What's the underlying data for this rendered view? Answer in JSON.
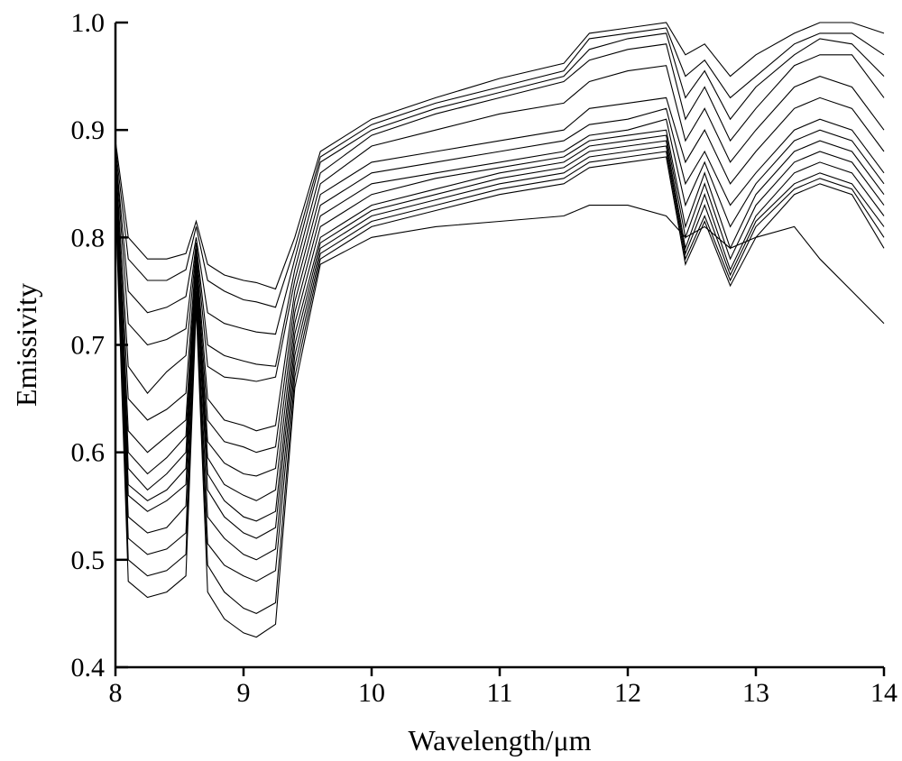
{
  "chart_data": {
    "type": "line",
    "title": "",
    "xlabel": "Wavelength/μm",
    "ylabel": "Emissivity",
    "xlim": [
      8,
      14
    ],
    "ylim": [
      0.4,
      1.0
    ],
    "x_ticks": [
      "8",
      "9",
      "10",
      "11",
      "12",
      "13",
      "14"
    ],
    "y_ticks": [
      "0.4",
      "0.5",
      "0.6",
      "0.7",
      "0.8",
      "0.9",
      "1.0"
    ],
    "grid": false,
    "legend": "none",
    "line_color": "#000000",
    "x": [
      8.0,
      8.1,
      8.25,
      8.4,
      8.55,
      8.63,
      8.72,
      8.85,
      9.0,
      9.1,
      9.25,
      9.4,
      9.6,
      10.0,
      10.5,
      11.0,
      11.5,
      11.7,
      12.0,
      12.3,
      12.45,
      12.6,
      12.8,
      13.0,
      13.3,
      13.5,
      13.75,
      14.0
    ],
    "series": [
      {
        "values": [
          0.89,
          0.8,
          0.78,
          0.78,
          0.785,
          0.815,
          0.775,
          0.765,
          0.76,
          0.758,
          0.752,
          0.8,
          0.88,
          0.91,
          0.93,
          0.948,
          0.962,
          0.99,
          0.995,
          1.0,
          0.97,
          0.98,
          0.95,
          0.97,
          0.99,
          1.0,
          1.0,
          0.99
        ]
      },
      {
        "values": [
          0.885,
          0.78,
          0.76,
          0.76,
          0.77,
          0.81,
          0.76,
          0.75,
          0.742,
          0.74,
          0.735,
          0.79,
          0.875,
          0.905,
          0.925,
          0.94,
          0.955,
          0.985,
          0.99,
          0.995,
          0.95,
          0.965,
          0.93,
          0.95,
          0.98,
          0.99,
          0.99,
          0.97
        ]
      },
      {
        "values": [
          0.88,
          0.75,
          0.73,
          0.735,
          0.745,
          0.8,
          0.73,
          0.72,
          0.715,
          0.712,
          0.71,
          0.78,
          0.87,
          0.9,
          0.92,
          0.935,
          0.95,
          0.975,
          0.985,
          0.99,
          0.93,
          0.955,
          0.91,
          0.94,
          0.97,
          0.985,
          0.98,
          0.95
        ]
      },
      {
        "values": [
          0.88,
          0.72,
          0.7,
          0.705,
          0.715,
          0.795,
          0.7,
          0.69,
          0.685,
          0.682,
          0.68,
          0.77,
          0.86,
          0.895,
          0.915,
          0.93,
          0.945,
          0.965,
          0.975,
          0.98,
          0.91,
          0.94,
          0.89,
          0.92,
          0.96,
          0.97,
          0.97,
          0.93
        ]
      },
      {
        "values": [
          0.875,
          0.68,
          0.655,
          0.675,
          0.69,
          0.79,
          0.68,
          0.67,
          0.668,
          0.666,
          0.67,
          0.76,
          0.85,
          0.885,
          0.9,
          0.915,
          0.925,
          0.945,
          0.955,
          0.96,
          0.89,
          0.92,
          0.87,
          0.9,
          0.94,
          0.95,
          0.94,
          0.9
        ]
      },
      {
        "values": [
          0.87,
          0.65,
          0.63,
          0.64,
          0.655,
          0.785,
          0.65,
          0.63,
          0.625,
          0.62,
          0.625,
          0.75,
          0.84,
          0.87,
          0.88,
          0.89,
          0.9,
          0.92,
          0.925,
          0.93,
          0.87,
          0.9,
          0.85,
          0.88,
          0.92,
          0.93,
          0.92,
          0.88
        ]
      },
      {
        "values": [
          0.87,
          0.62,
          0.6,
          0.615,
          0.63,
          0.78,
          0.63,
          0.61,
          0.605,
          0.6,
          0.605,
          0.74,
          0.83,
          0.86,
          0.87,
          0.88,
          0.89,
          0.905,
          0.91,
          0.92,
          0.85,
          0.88,
          0.83,
          0.86,
          0.9,
          0.91,
          0.9,
          0.86
        ]
      },
      {
        "values": [
          0.865,
          0.6,
          0.58,
          0.595,
          0.615,
          0.775,
          0.61,
          0.59,
          0.58,
          0.578,
          0.585,
          0.73,
          0.82,
          0.85,
          0.86,
          0.87,
          0.88,
          0.895,
          0.9,
          0.91,
          0.83,
          0.87,
          0.81,
          0.85,
          0.89,
          0.9,
          0.89,
          0.85
        ]
      },
      {
        "values": [
          0.86,
          0.585,
          0.565,
          0.58,
          0.6,
          0.77,
          0.595,
          0.57,
          0.56,
          0.555,
          0.565,
          0.72,
          0.81,
          0.84,
          0.855,
          0.865,
          0.875,
          0.89,
          0.895,
          0.9,
          0.81,
          0.86,
          0.79,
          0.84,
          0.88,
          0.89,
          0.88,
          0.84
        ]
      },
      {
        "values": [
          0.855,
          0.57,
          0.555,
          0.565,
          0.585,
          0.765,
          0.58,
          0.555,
          0.54,
          0.536,
          0.545,
          0.71,
          0.8,
          0.83,
          0.845,
          0.86,
          0.87,
          0.885,
          0.89,
          0.895,
          0.8,
          0.85,
          0.78,
          0.83,
          0.87,
          0.88,
          0.87,
          0.83
        ]
      },
      {
        "values": [
          0.85,
          0.56,
          0.545,
          0.555,
          0.57,
          0.76,
          0.565,
          0.54,
          0.525,
          0.52,
          0.53,
          0.7,
          0.795,
          0.825,
          0.84,
          0.855,
          0.865,
          0.88,
          0.885,
          0.89,
          0.79,
          0.84,
          0.77,
          0.82,
          0.86,
          0.87,
          0.86,
          0.82
        ]
      },
      {
        "values": [
          0.85,
          0.54,
          0.525,
          0.53,
          0.55,
          0.75,
          0.54,
          0.52,
          0.505,
          0.5,
          0.51,
          0.69,
          0.79,
          0.82,
          0.835,
          0.85,
          0.86,
          0.875,
          0.88,
          0.885,
          0.785,
          0.83,
          0.765,
          0.815,
          0.85,
          0.86,
          0.85,
          0.81
        ]
      },
      {
        "values": [
          0.845,
          0.52,
          0.505,
          0.51,
          0.525,
          0.745,
          0.515,
          0.495,
          0.485,
          0.48,
          0.49,
          0.68,
          0.785,
          0.815,
          0.83,
          0.845,
          0.855,
          0.87,
          0.875,
          0.88,
          0.78,
          0.82,
          0.76,
          0.81,
          0.845,
          0.855,
          0.845,
          0.8
        ]
      },
      {
        "values": [
          0.84,
          0.5,
          0.485,
          0.49,
          0.505,
          0.74,
          0.495,
          0.47,
          0.455,
          0.45,
          0.46,
          0.67,
          0.78,
          0.81,
          0.825,
          0.84,
          0.85,
          0.865,
          0.87,
          0.875,
          0.775,
          0.815,
          0.755,
          0.8,
          0.84,
          0.85,
          0.84,
          0.79
        ]
      },
      {
        "values": [
          0.835,
          0.48,
          0.465,
          0.47,
          0.485,
          0.735,
          0.47,
          0.445,
          0.432,
          0.428,
          0.44,
          0.66,
          0.775,
          0.8,
          0.81,
          0.815,
          0.82,
          0.83,
          0.83,
          0.82,
          0.8,
          0.81,
          0.79,
          0.8,
          0.81,
          0.78,
          0.75,
          0.72
        ]
      }
    ]
  }
}
